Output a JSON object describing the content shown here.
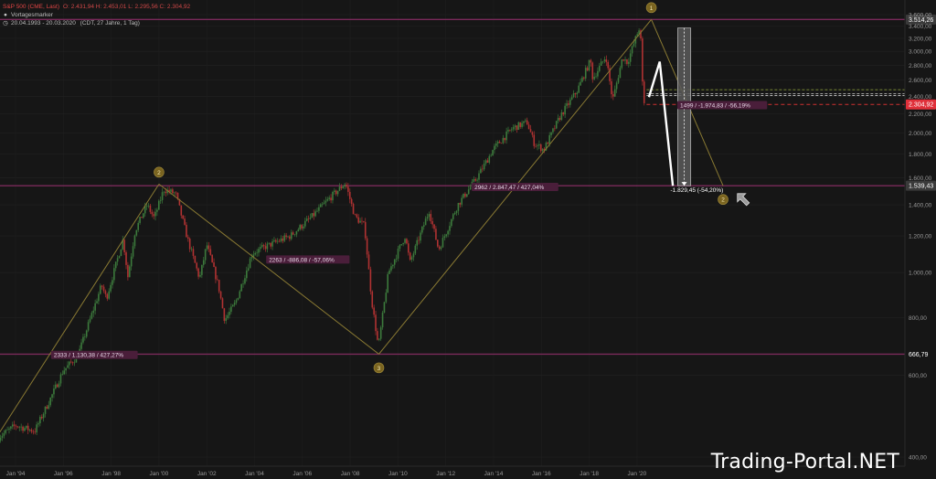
{
  "header": {
    "symbol": "S&P 500 (CME, Last)",
    "ohlc": "O: 2.431,94  H: 2.453,01  L: 2.295,56  C: 2.304,92",
    "marker_label": "Vortagesmarker",
    "range": "20.04.1993 - 20.03.2020",
    "range_info": "(CDT, 27 Jahre, 1 Tag)"
  },
  "watermark": "Trading-Portal.NET",
  "colors": {
    "background": "#161616",
    "candle_up": "#3c7a3c",
    "candle_down": "#b03232",
    "trend_line": "#8a7a33",
    "level_line": "#7a2a5a",
    "price_tag_red": "#e0303a",
    "wave_marker": "#7a6420",
    "annotation_bg": "#4a1e3a"
  },
  "chart_data": {
    "type": "candlestick",
    "title": "S&P 500 (CME, Last)",
    "x_range": [
      "1993-04-20",
      "2020-03-20"
    ],
    "x_tick_labels": [
      "Jan '94",
      "Jan '96",
      "Jan '98",
      "Jan '00",
      "Jan '02",
      "Jan '04",
      "Jan '06",
      "Jan '08",
      "Jan '10",
      "Jan '12",
      "Jan '14",
      "Jan '16",
      "Jan '18",
      "Jan '20"
    ],
    "x_tick_years": [
      1994,
      1996,
      1998,
      2000,
      2002,
      2004,
      2006,
      2008,
      2010,
      2012,
      2014,
      2016,
      2018,
      2020
    ],
    "y_scale": "log",
    "y_range": [
      400,
      3700
    ],
    "y_tick_labels": [
      "400,00",
      "600,00",
      "800,00",
      "1.000,00",
      "1.200,00",
      "1.400,00",
      "1.600,00",
      "1.800,00",
      "2.000,00",
      "2.200,00",
      "2.400,00",
      "2.600,00",
      "2.800,00",
      "3.000,00",
      "3.200,00",
      "3.400,00",
      "3.600,00"
    ],
    "y_tick_values": [
      400,
      600,
      800,
      1000,
      1200,
      1400,
      1600,
      1800,
      2000,
      2200,
      2400,
      2600,
      2800,
      3000,
      3200,
      3400,
      3600
    ],
    "price_path": [
      [
        1993.3,
        442
      ],
      [
        1994.0,
        468
      ],
      [
        1994.8,
        455
      ],
      [
        1995.5,
        540
      ],
      [
        1996.0,
        615
      ],
      [
        1996.6,
        660
      ],
      [
        1997.0,
        760
      ],
      [
        1997.6,
        940
      ],
      [
        1997.8,
        880
      ],
      [
        1998.5,
        1180
      ],
      [
        1998.7,
        980
      ],
      [
        1999.0,
        1230
      ],
      [
        1999.5,
        1400
      ],
      [
        1999.8,
        1310
      ],
      [
        2000.2,
        1510
      ],
      [
        2000.7,
        1480
      ],
      [
        2001.2,
        1180
      ],
      [
        2001.7,
        970
      ],
      [
        2002.0,
        1150
      ],
      [
        2002.5,
        930
      ],
      [
        2002.75,
        790
      ],
      [
        2003.2,
        860
      ],
      [
        2003.9,
        1100
      ],
      [
        2004.5,
        1140
      ],
      [
        2005.5,
        1200
      ],
      [
        2006.4,
        1320
      ],
      [
        2007.1,
        1440
      ],
      [
        2007.8,
        1560
      ],
      [
        2008.2,
        1320
      ],
      [
        2008.6,
        1260
      ],
      [
        2008.9,
        870
      ],
      [
        2009.18,
        690
      ],
      [
        2009.6,
        1000
      ],
      [
        2010.3,
        1200
      ],
      [
        2010.5,
        1050
      ],
      [
        2011.3,
        1360
      ],
      [
        2011.7,
        1120
      ],
      [
        2012.5,
        1400
      ],
      [
        2013.3,
        1600
      ],
      [
        2014.0,
        1850
      ],
      [
        2014.8,
        2050
      ],
      [
        2015.4,
        2110
      ],
      [
        2015.7,
        1900
      ],
      [
        2016.1,
        1840
      ],
      [
        2016.8,
        2180
      ],
      [
        2017.5,
        2470
      ],
      [
        2018.05,
        2870
      ],
      [
        2018.15,
        2620
      ],
      [
        2018.7,
        2930
      ],
      [
        2018.98,
        2350
      ],
      [
        2019.4,
        2920
      ],
      [
        2019.6,
        2840
      ],
      [
        2020.1,
        3380
      ],
      [
        2020.14,
        3300
      ],
      [
        2020.2,
        2800
      ],
      [
        2020.25,
        2380
      ],
      [
        2020.3,
        2305
      ]
    ],
    "levels": [
      {
        "label": "3.514,26",
        "value": 3514.26,
        "tag": "grey"
      },
      {
        "label": "2.304,92",
        "value": 2304.92,
        "tag": "red"
      },
      {
        "label": "1.539,43",
        "value": 1539.43,
        "tag": "grey"
      },
      {
        "label": "666,79",
        "value": 666.79,
        "tag": "none"
      }
    ],
    "wave_points": [
      {
        "label": "2",
        "x": 1993.0,
        "y": 425
      },
      {
        "label": "2",
        "x": 2000.0,
        "y": 1552
      },
      {
        "label": "3",
        "x": 2009.2,
        "y": 667
      },
      {
        "label": "1",
        "x": 2020.6,
        "y": 3514
      },
      {
        "label": "2",
        "x": 2023.6,
        "y": 1539
      }
    ],
    "white_projection": [
      [
        2020.5,
        2390
      ],
      [
        2020.95,
        2850
      ],
      [
        2021.5,
        1539
      ]
    ],
    "annotations": [
      {
        "text": "2333 / 1.130,38 / 427,27%",
        "x": 1995.6,
        "y": 660
      },
      {
        "text": "2263 / -886,08 / -57,06%",
        "x": 2004.6,
        "y": 1060
      },
      {
        "text": "2962 / 2.847,47 / 427,04%",
        "x": 2013.2,
        "y": 1520
      },
      {
        "text": "1499 / -1.974,83 / -56,19%",
        "x": 2021.8,
        "y": 2282
      },
      {
        "text": "-1.829,45 (-54,20%)",
        "x": 2021.4,
        "y": 1500
      }
    ],
    "measure_box": {
      "x0": 2021.7,
      "x1": 2022.25,
      "y0": 1539.43,
      "y1": 3369
    }
  }
}
